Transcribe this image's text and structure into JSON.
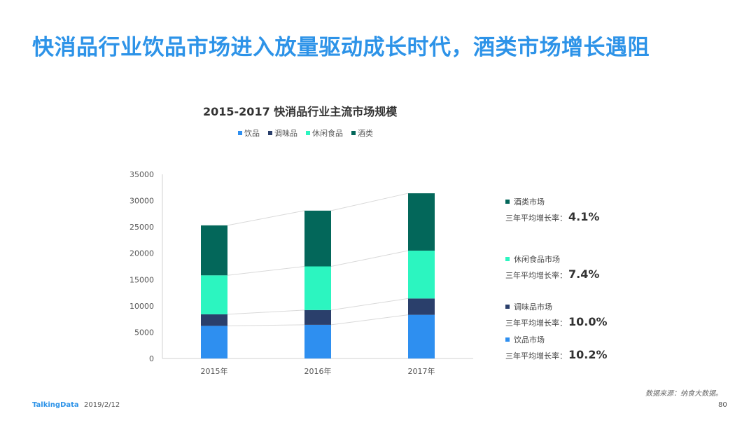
{
  "page": {
    "title": "快消品行业饮品市场进入放量驱动成长时代，酒类市场增长遇阻",
    "source": "数据来源：纳食大数据。",
    "brand": "TalkingData",
    "date": "2019/2/12",
    "page_number": "80"
  },
  "chart_data": {
    "type": "bar",
    "stacked": true,
    "title": "2015-2017  快消品行业主流市场规模",
    "categories": [
      "2015年",
      "2016年",
      "2017年"
    ],
    "series": [
      {
        "name": "饮品",
        "color": "#2e8ff0",
        "values": [
          6200,
          6400,
          8300
        ]
      },
      {
        "name": "调味品",
        "color": "#2a3f6b",
        "values": [
          2200,
          2800,
          3100
        ]
      },
      {
        "name": "休闲食品",
        "color": "#2cf5c0",
        "values": [
          7400,
          8300,
          9100
        ]
      },
      {
        "name": "酒类",
        "color": "#03675a",
        "values": [
          9500,
          10600,
          10900
        ]
      }
    ],
    "ylim": [
      0,
      35000
    ],
    "yticks": [
      0,
      5000,
      10000,
      15000,
      20000,
      25000,
      30000,
      35000
    ],
    "grid": false,
    "legend_position": "top",
    "connector_lines": true
  },
  "growth_panel": [
    {
      "label": "酒类市场",
      "rate_label": "三年平均增长率：",
      "rate": "4.1%",
      "color": "#03675a"
    },
    {
      "label": "休闲食品市场",
      "rate_label": "三年平均增长率：",
      "rate": "7.4%",
      "color": "#2cf5c0"
    },
    {
      "label": "调味品市场",
      "rate_label": "三年平均增长率：",
      "rate": "10.0%",
      "color": "#2a3f6b"
    },
    {
      "label": "饮品市场",
      "rate_label": "三年平均增长率：",
      "rate": "10.2%",
      "color": "#2e8ff0"
    }
  ]
}
